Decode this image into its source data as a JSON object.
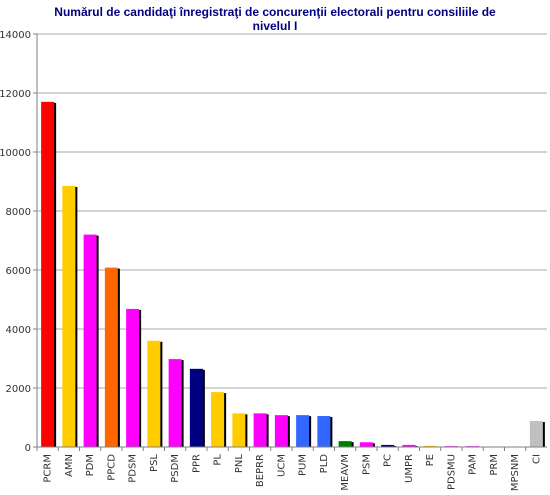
{
  "chart_data": {
    "type": "bar",
    "title": [
      "Numărul de candidaţi înregistraţi de concurenţii electorali pentru consiliile de",
      "nivelul I"
    ],
    "xlabel": "",
    "ylabel": "",
    "ylim": [
      0,
      14000
    ],
    "yticks": [
      "0",
      "2000",
      "4000",
      "6000",
      "8000",
      "10000",
      "12000",
      "14000"
    ],
    "grid": true,
    "categories": [
      "PCRM",
      "AMN",
      "PDM",
      "PPCD",
      "PDSM",
      "PSL",
      "PSDM",
      "PPR",
      "PL",
      "PNL",
      "BEPRR",
      "UCM",
      "PUM",
      "PLD",
      "MEAVM",
      "PSM",
      "PC",
      "UMPR",
      "PE",
      "PDSMU",
      "PAM",
      "PRM",
      "MPSNM",
      "CI"
    ],
    "values": [
      11700,
      8850,
      7200,
      6080,
      4680,
      3600,
      2980,
      2650,
      1860,
      1140,
      1140,
      1080,
      1080,
      1050,
      200,
      160,
      70,
      70,
      40,
      30,
      30,
      10,
      5,
      880
    ],
    "colors": [
      "#ff0000",
      "#ffcc00",
      "#ff00ff",
      "#ff6600",
      "#ff00ff",
      "#ffcc00",
      "#ff00ff",
      "#000080",
      "#ffcc00",
      "#ffcc00",
      "#ff00ff",
      "#ff00ff",
      "#3366ff",
      "#3366ff",
      "#008000",
      "#ff00ff",
      "#000080",
      "#ff00ff",
      "#ffcc00",
      "#ff00ff",
      "#ff00ff",
      "#3366ff",
      "#ff00ff",
      "#c0c0c0"
    ]
  }
}
